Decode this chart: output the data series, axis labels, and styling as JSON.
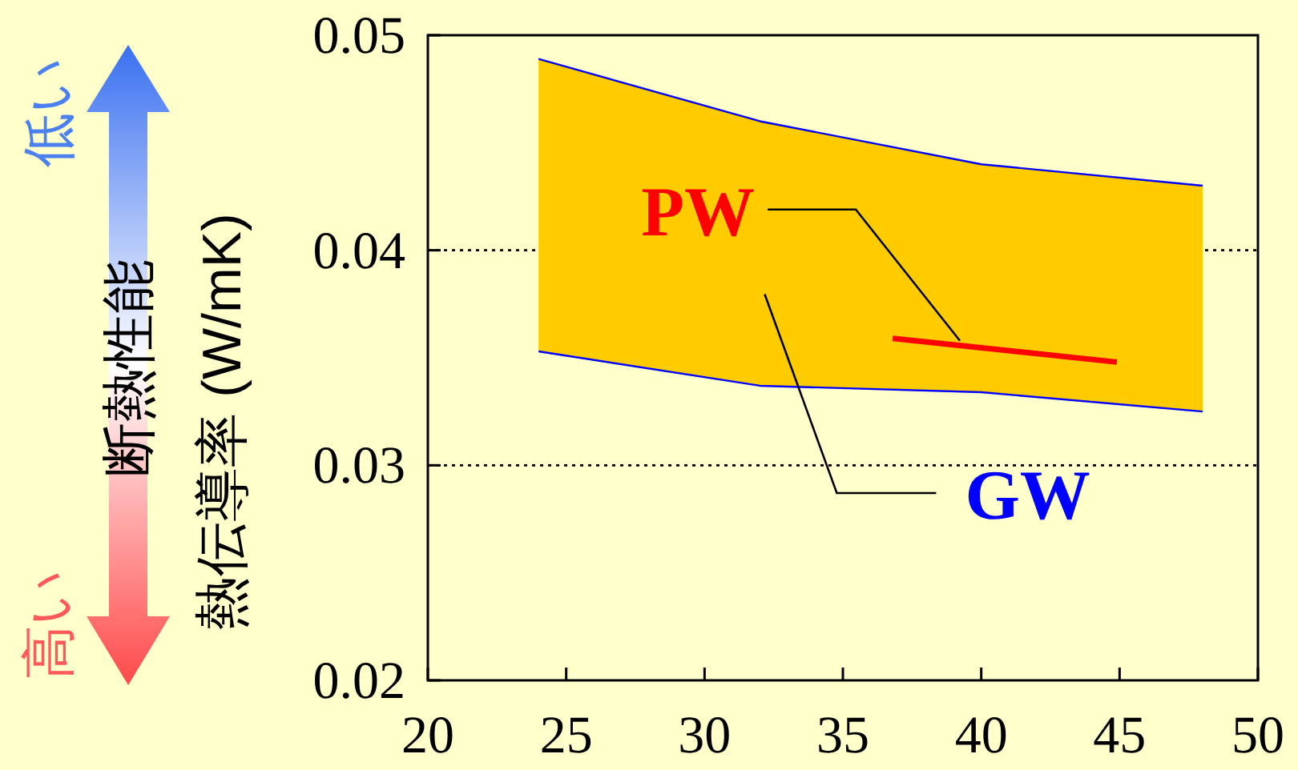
{
  "chart_data": {
    "type": "line",
    "ylabel": "熱伝導率 (W/mK)",
    "xlim": [
      20,
      50
    ],
    "xticks": [
      20,
      25,
      30,
      35,
      40,
      45,
      50
    ],
    "ylim": [
      0.02,
      0.05
    ],
    "yticks": [
      0.02,
      0.03,
      0.04,
      0.05
    ],
    "grid": "y",
    "legend": false,
    "series": [
      {
        "name": "GW",
        "color": "#0000ff",
        "x": [
          24,
          32,
          40,
          48
        ],
        "values": [
          0.0489,
          0.046,
          0.044,
          0.043
        ],
        "upper": [
          0.0489,
          0.046,
          0.044,
          0.043
        ],
        "lower": [
          0.0353,
          0.0337,
          0.0334,
          0.0325
        ]
      },
      {
        "color": "#0000ff",
        "x": [
          24,
          32,
          40,
          48
        ],
        "values": [
          0.0353,
          0.0337,
          0.0334,
          0.0325
        ]
      },
      {
        "name": "PW",
        "color": "#ff0000",
        "x": [
          36.8,
          44.9
        ],
        "values": [
          0.0359,
          0.0348
        ]
      }
    ],
    "annotations": [
      "断熱性能",
      "低い",
      "高い"
    ]
  }
}
